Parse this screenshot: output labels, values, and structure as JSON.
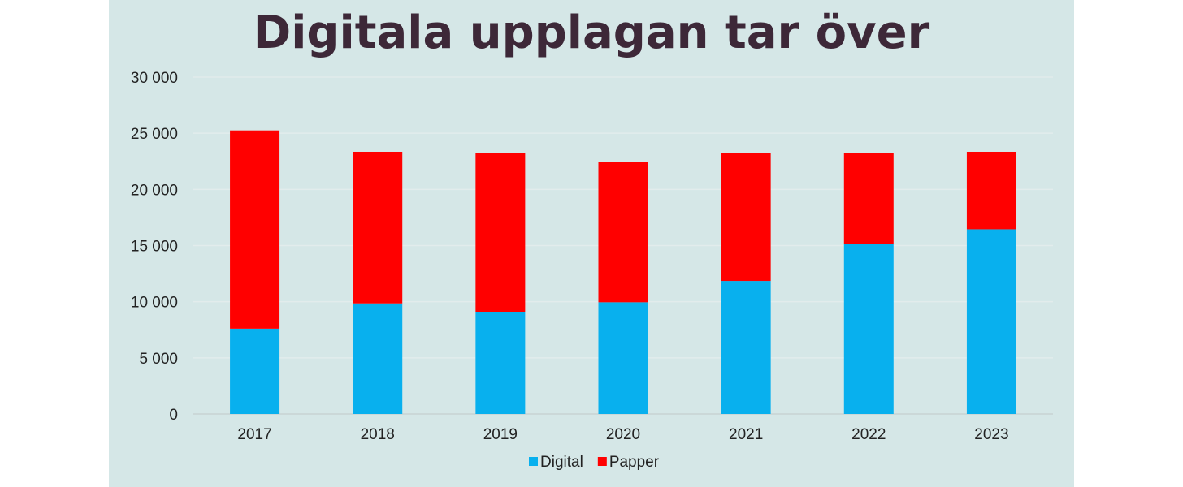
{
  "chart_data": {
    "type": "bar",
    "stacked": true,
    "title": "Digitala upplagan tar över",
    "xlabel": "",
    "ylabel": "",
    "categories": [
      "2017",
      "2018",
      "2019",
      "2020",
      "2021",
      "2022",
      "2023"
    ],
    "series": [
      {
        "name": "Digital",
        "color": "#08b0ee",
        "values": [
          7600,
          9850,
          9050,
          9950,
          11850,
          15150,
          16450
        ]
      },
      {
        "name": "Papper",
        "color": "#ff0000",
        "values": [
          17650,
          13500,
          14200,
          12500,
          11400,
          8100,
          6900
        ]
      }
    ],
    "ylim": [
      0,
      30000
    ],
    "yticks": [
      0,
      5000,
      10000,
      15000,
      20000,
      25000,
      30000
    ],
    "ytick_labels": [
      "0",
      "5 000",
      "10 000",
      "15 000",
      "20 000",
      "25 000",
      "30 000"
    ],
    "grid": true,
    "legend_position": "bottom"
  }
}
